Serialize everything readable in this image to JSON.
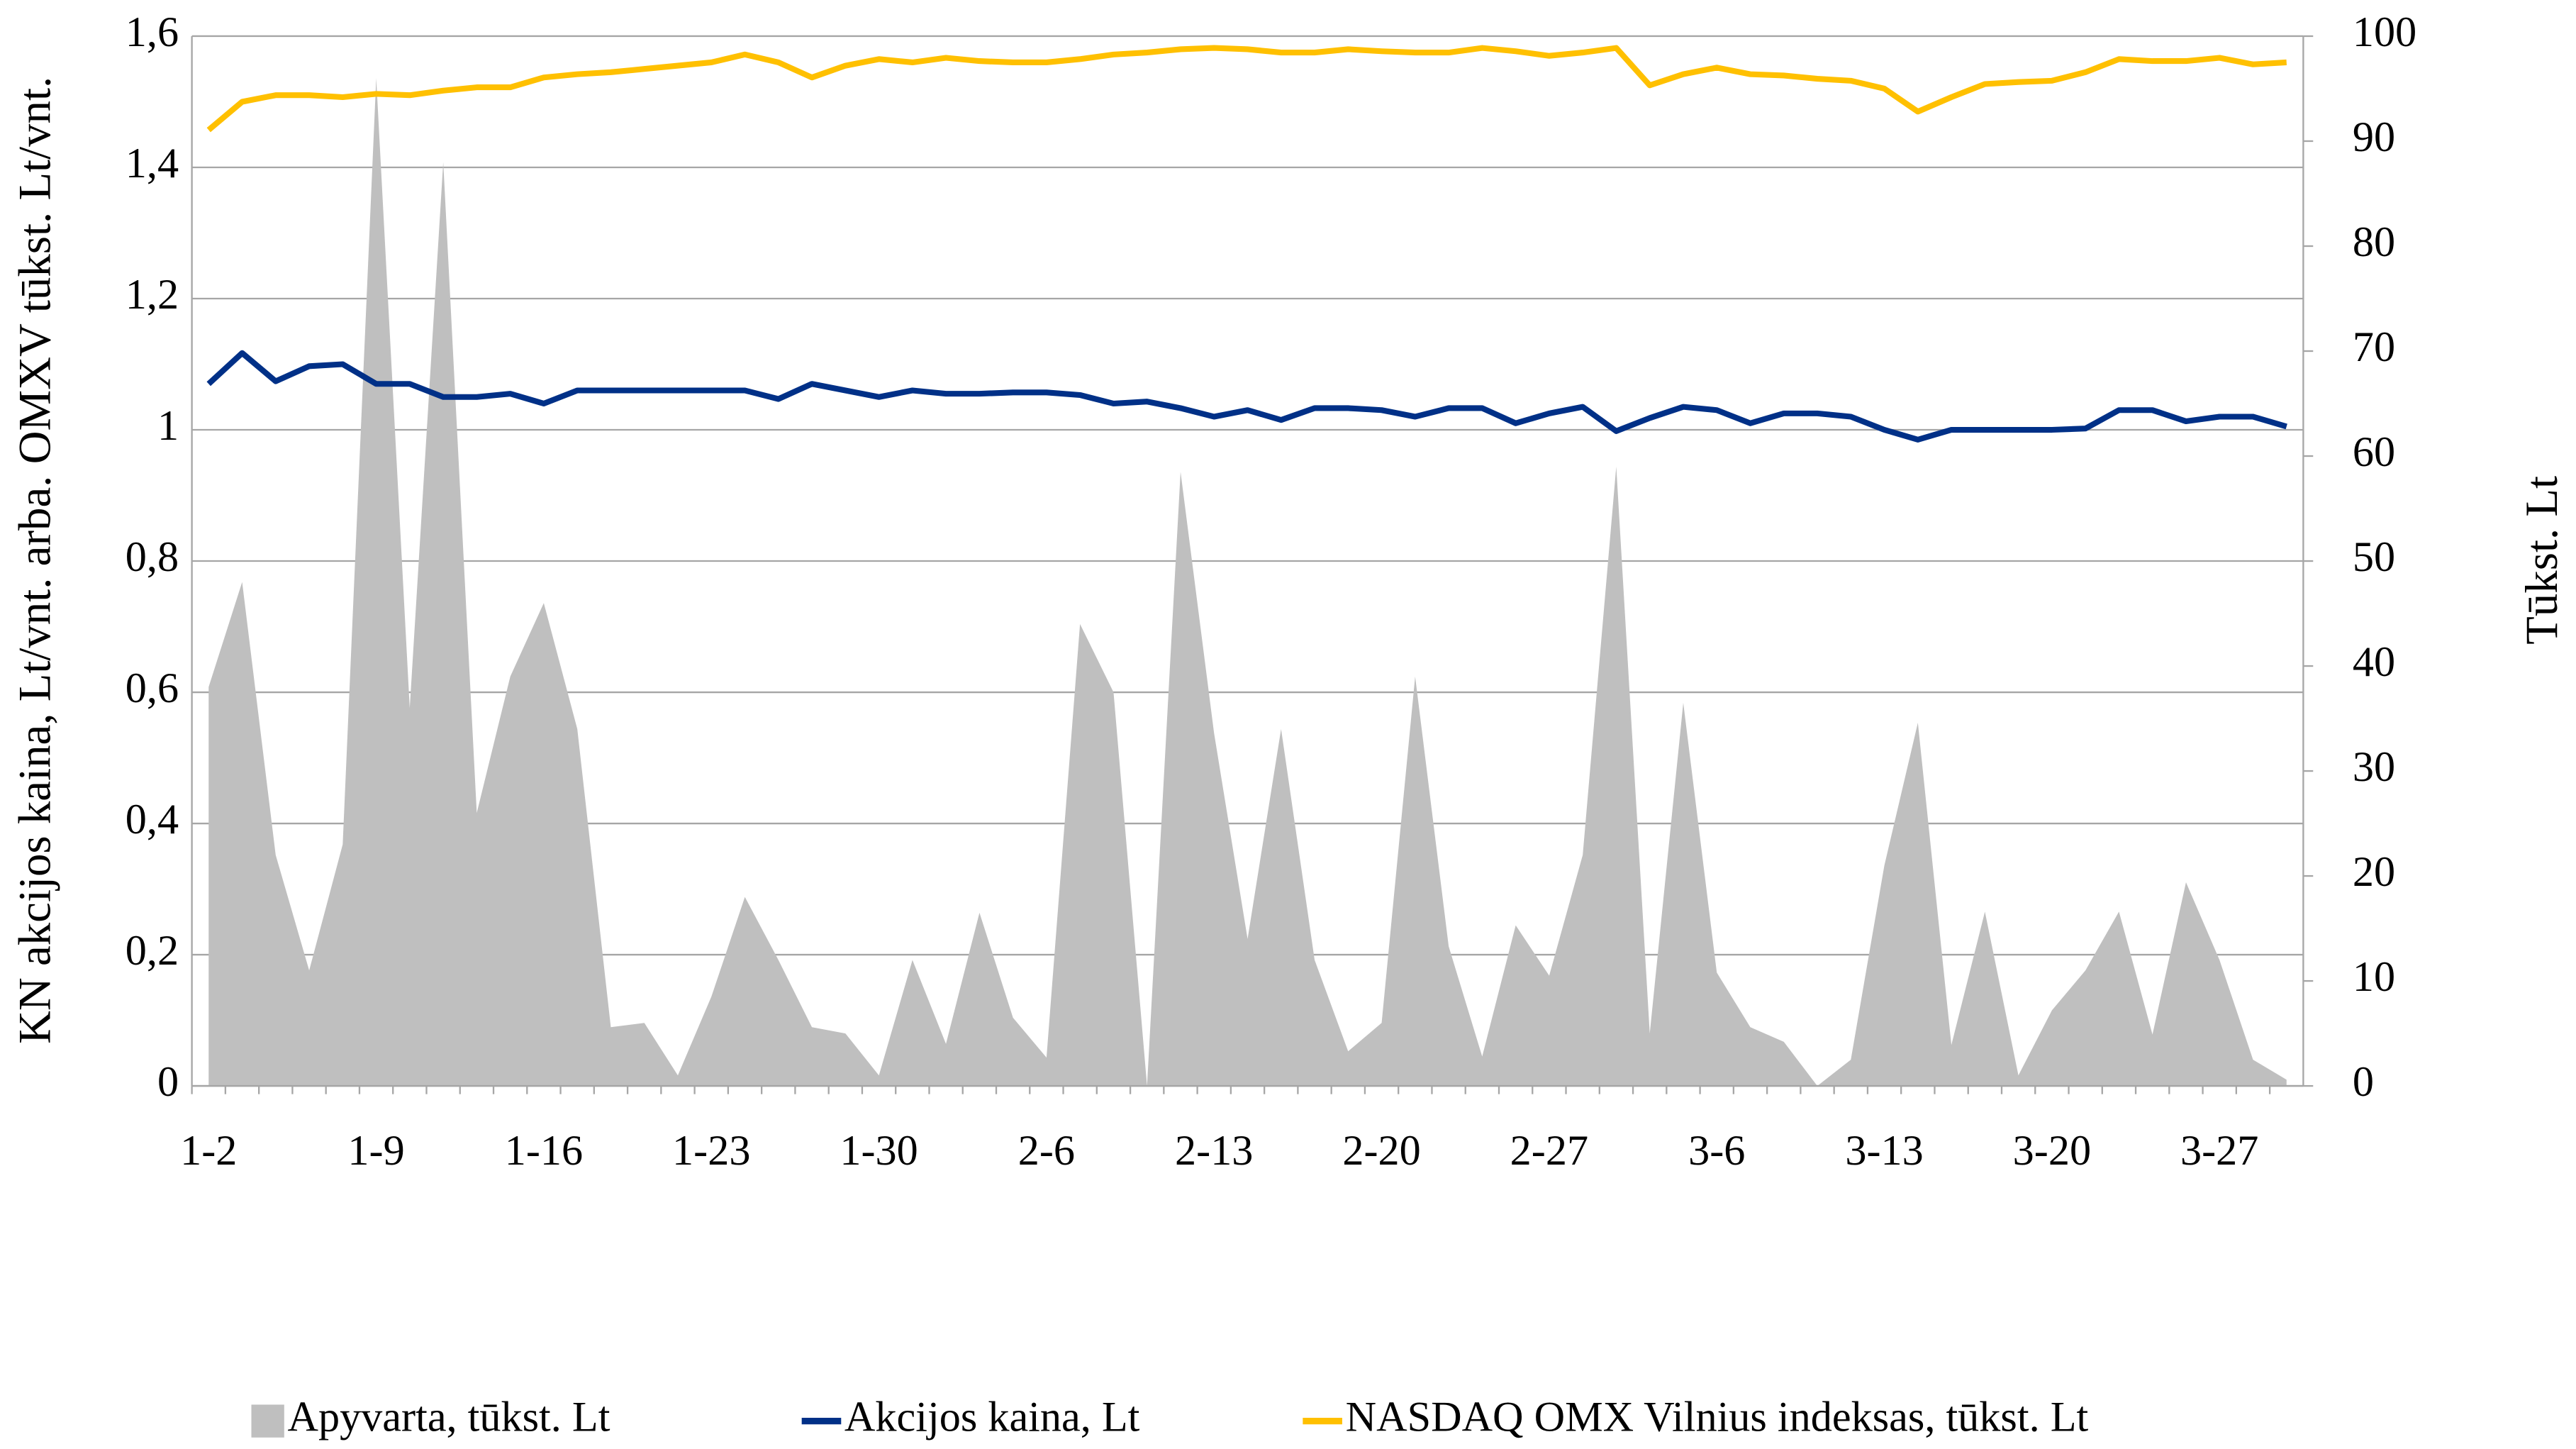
{
  "chart_data": {
    "type": "line",
    "ylabel": "KN akcijos  kaina, Lt/vnt. arba. OMXV tūkst. Lt/vnt.",
    "y2label": "Tūkst. Lt",
    "categories": [
      "1-2",
      null,
      null,
      null,
      null,
      "1-9",
      null,
      null,
      null,
      null,
      "1-16",
      null,
      null,
      null,
      null,
      "1-23",
      null,
      null,
      null,
      null,
      "1-30",
      null,
      null,
      null,
      null,
      "2-6",
      null,
      null,
      null,
      null,
      "2-13",
      null,
      null,
      null,
      null,
      "2-20",
      null,
      null,
      null,
      null,
      "2-27",
      null,
      null,
      null,
      null,
      "3-6",
      null,
      null,
      null,
      null,
      "3-13",
      null,
      null,
      null,
      null,
      "3-20",
      null,
      null,
      null,
      null,
      "3-27",
      null,
      null
    ],
    "ylim": [
      0,
      1.6
    ],
    "yticks": [
      0,
      {
        "value": 0.2,
        "label": "0,2"
      },
      {
        "value": 0.4,
        "label": "0,4"
      },
      {
        "value": 0.6,
        "label": "0,6"
      },
      {
        "value": 0.8,
        "label": "0,8"
      },
      1,
      {
        "value": 1.2,
        "label": "1,2"
      },
      {
        "value": 1.4,
        "label": "1,4"
      },
      {
        "value": 1.6,
        "label": "1,6"
      }
    ],
    "y2lim": [
      0,
      100
    ],
    "y2ticks": [
      0,
      10,
      20,
      30,
      40,
      50,
      60,
      70,
      80,
      90,
      100
    ],
    "grid": true,
    "legend": "bottom",
    "series": [
      {
        "name": "Apyvarta, tūkst. Lt",
        "type": "area",
        "axis": "y2",
        "color": "#bfbfbf",
        "values": [
          38,
          48,
          22,
          11,
          23,
          96,
          36,
          88,
          26,
          39,
          46,
          34,
          5.6,
          6,
          1,
          8.5,
          18,
          12,
          5.6,
          5,
          1,
          12,
          4,
          16.5,
          6.5,
          2.7,
          44,
          37.5,
          0,
          58.5,
          33.6,
          14,
          34,
          12,
          3.3,
          6,
          39,
          13.3,
          2.8,
          15.3,
          10.5,
          22,
          59,
          5,
          36.5,
          10.8,
          5.6,
          4.2,
          0,
          2.5,
          21,
          34.6,
          3.9,
          16.6,
          1,
          7.2,
          11,
          16.6,
          4.9,
          19.4,
          12,
          2.5,
          0.6
        ]
      },
      {
        "name": "Akcijos kaina, Lt",
        "type": "line",
        "color": "#003087",
        "values": [
          1.07,
          1.117,
          1.074,
          1.097,
          1.1,
          1.07,
          1.07,
          1.05,
          1.05,
          1.055,
          1.04,
          1.06,
          1.06,
          1.06,
          1.06,
          1.06,
          1.06,
          1.047,
          1.07,
          1.06,
          1.05,
          1.06,
          1.055,
          1.055,
          1.057,
          1.057,
          1.053,
          1.04,
          1.043,
          1.033,
          1.02,
          1.03,
          1.015,
          1.033,
          1.033,
          1.03,
          1.02,
          1.033,
          1.033,
          1.01,
          1.025,
          1.035,
          0.998,
          1.018,
          1.035,
          1.03,
          1.01,
          1.025,
          1.025,
          1.02,
          1.0,
          0.985,
          1.0,
          1.0,
          1.0,
          1.0,
          1.002,
          1.03,
          1.03,
          1.013,
          1.02,
          1.02,
          1.005
        ]
      },
      {
        "name": "NASDAQ OMX Vilnius indeksas, tūkst. Lt",
        "type": "line",
        "color": "#ffc000",
        "values": [
          1.457,
          1.5,
          1.51,
          1.51,
          1.507,
          1.512,
          1.51,
          1.517,
          1.522,
          1.522,
          1.537,
          1.542,
          1.545,
          1.55,
          1.555,
          1.56,
          1.572,
          1.56,
          1.537,
          1.555,
          1.565,
          1.56,
          1.567,
          1.562,
          1.56,
          1.56,
          1.565,
          1.572,
          1.575,
          1.58,
          1.582,
          1.58,
          1.575,
          1.575,
          1.58,
          1.577,
          1.575,
          1.575,
          1.582,
          1.577,
          1.57,
          1.575,
          1.582,
          1.525,
          1.542,
          1.552,
          1.542,
          1.54,
          1.535,
          1.532,
          1.52,
          1.485,
          1.507,
          1.527,
          1.53,
          1.532,
          1.545,
          1.565,
          1.562,
          1.562,
          1.567,
          1.557,
          1.56
        ]
      }
    ]
  }
}
